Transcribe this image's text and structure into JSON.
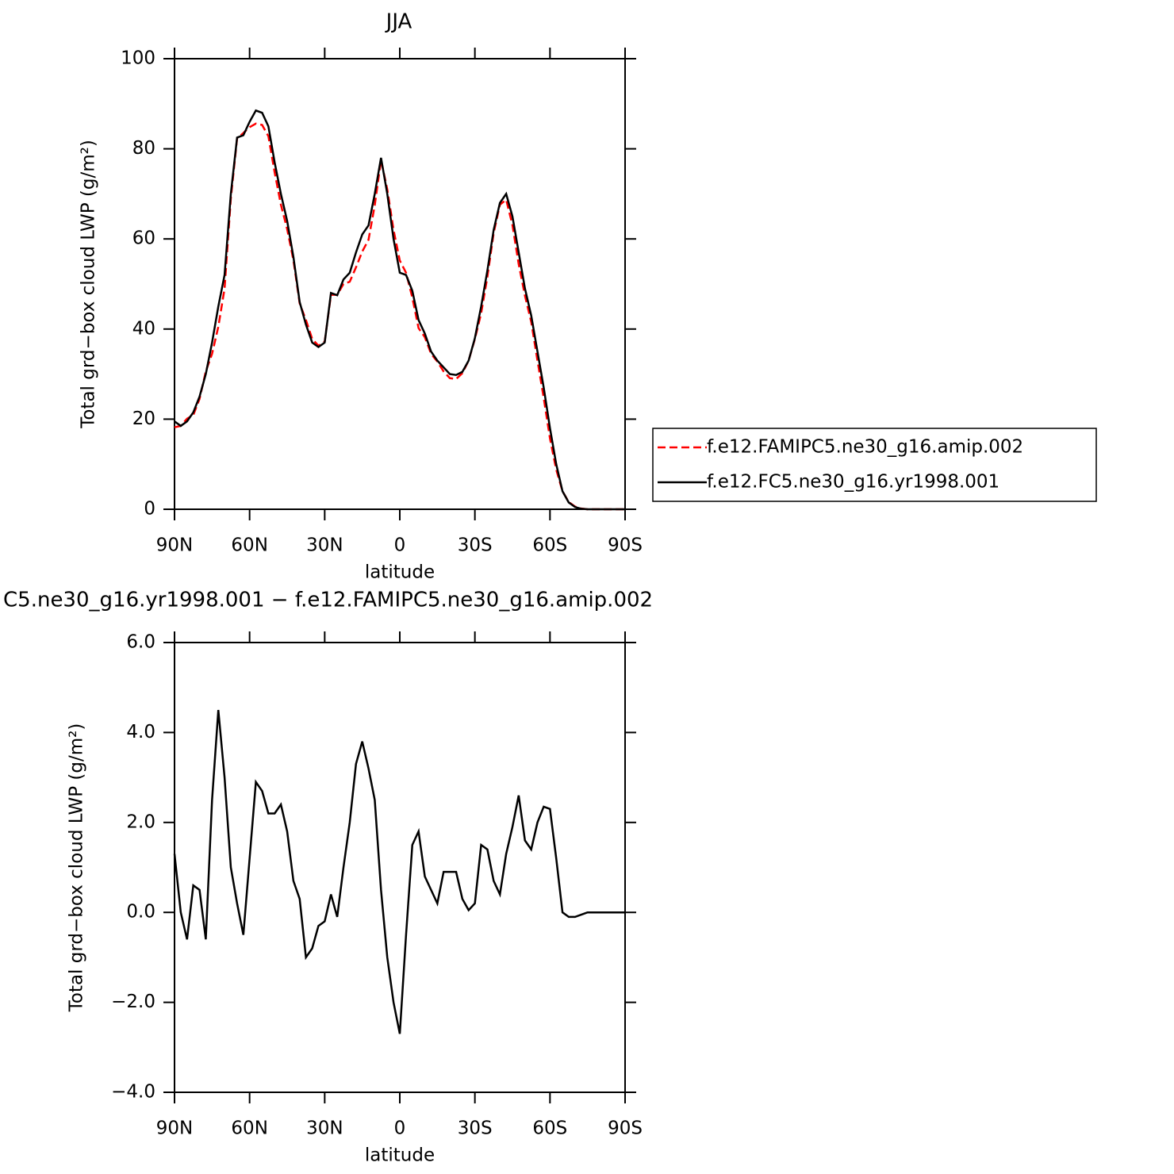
{
  "chart_data": [
    {
      "type": "line",
      "title": "JJA",
      "x_label": "latitude",
      "y_label": "Total grd−box cloud LWP (g/m²)",
      "legend": "right",
      "x": [
        90,
        87.5,
        85,
        82.5,
        80,
        77.5,
        75,
        72.5,
        70,
        67.5,
        65,
        62.5,
        60,
        57.5,
        55,
        52.5,
        50,
        47.5,
        45,
        42.5,
        40,
        37.5,
        35,
        32.5,
        30,
        27.5,
        25,
        22.5,
        20,
        17.5,
        15,
        12.5,
        10,
        7.5,
        5,
        2.5,
        0,
        -2.5,
        -5,
        -7.5,
        -10,
        -12.5,
        -15,
        -17.5,
        -20,
        -22.5,
        -25,
        -27.5,
        -30,
        -32.5,
        -35,
        -37.5,
        -40,
        -42.5,
        -45,
        -47.5,
        -50,
        -52.5,
        -55,
        -57.5,
        -60,
        -62.5,
        -65,
        -67.5,
        -70,
        -72.5,
        -75,
        -77.5,
        -80,
        -82.5,
        -85,
        -87.5,
        -90
      ],
      "series": [
        {
          "name": "f.e12.FAMIPC5.ne30_g16.amip.002",
          "color": "#ff0000",
          "dash": true,
          "values": [
            18.2,
            18.5,
            20.1,
            20.9,
            24.5,
            30.6,
            34.5,
            40.5,
            49,
            69,
            82.3,
            83.5,
            84.8,
            85.6,
            85.3,
            82.8,
            74.8,
            67.6,
            62.2,
            55.3,
            45.7,
            42,
            37.8,
            36.3,
            37.2,
            47.6,
            47.6,
            50,
            50.5,
            53.7,
            57.2,
            59.8,
            67.5,
            77.5,
            71,
            62,
            55.2,
            52.5,
            47,
            40.2,
            38.2,
            34.5,
            32.8,
            30.6,
            29.1,
            28.9,
            30.2,
            33,
            37.8,
            43.5,
            51.6,
            61.3,
            67.6,
            68.7,
            63.1,
            54.4,
            47.4,
            41.6,
            33,
            24.7,
            15.7,
            8.8,
            4,
            1.6,
            0.6,
            0.15,
            0,
            0,
            0,
            0,
            0,
            0,
            0
          ]
        },
        {
          "name": "f.e12.FC5.ne30_g16.yr1998.001",
          "color": "#000000",
          "dash": false,
          "values": [
            19.5,
            18.5,
            19.5,
            21.5,
            25,
            30,
            37,
            45,
            52,
            70,
            82.5,
            83,
            86,
            88.5,
            88,
            85,
            77,
            70,
            64,
            56,
            46,
            41,
            37,
            36,
            37,
            48,
            47.5,
            51,
            52.5,
            57,
            61,
            63,
            70,
            78,
            70,
            60,
            52.5,
            52,
            48.5,
            42,
            39,
            35,
            33,
            31.5,
            30,
            29.8,
            30.5,
            33,
            38,
            45,
            53,
            62,
            68,
            70,
            65,
            57,
            49,
            43,
            35,
            27,
            18,
            10,
            4,
            1.5,
            0.5,
            0.1,
            0,
            0,
            0,
            0,
            0,
            0,
            0
          ]
        }
      ],
      "xlim": [
        90,
        -90
      ],
      "ylim": [
        0,
        100
      ],
      "xticks": [
        {
          "value": 90,
          "label": "90N"
        },
        {
          "value": 60,
          "label": "60N"
        },
        {
          "value": 30,
          "label": "30N"
        },
        0,
        {
          "value": -30,
          "label": "30S"
        },
        {
          "value": -60,
          "label": "60S"
        },
        {
          "value": -90,
          "label": "90S"
        }
      ],
      "yticks": [
        0,
        20,
        40,
        60,
        80,
        100
      ]
    },
    {
      "type": "line",
      "title": "C5.ne30_g16.yr1998.001 − f.e12.FAMIPC5.ne30_g16.amip.002",
      "x_label": "latitude",
      "y_label": "Total grd−box cloud LWP (g/m²)",
      "x": [
        90,
        87.5,
        85,
        82.5,
        80,
        77.5,
        75,
        72.5,
        70,
        67.5,
        65,
        62.5,
        60,
        57.5,
        55,
        52.5,
        50,
        47.5,
        45,
        42.5,
        40,
        37.5,
        35,
        32.5,
        30,
        27.5,
        25,
        22.5,
        20,
        17.5,
        15,
        12.5,
        10,
        7.5,
        5,
        2.5,
        0,
        -2.5,
        -5,
        -7.5,
        -10,
        -12.5,
        -15,
        -17.5,
        -20,
        -22.5,
        -25,
        -27.5,
        -30,
        -32.5,
        -35,
        -37.5,
        -40,
        -42.5,
        -45,
        -47.5,
        -50,
        -52.5,
        -55,
        -57.5,
        -60,
        -62.5,
        -65,
        -67.5,
        -70,
        -72.5,
        -75,
        -77.5,
        -80,
        -82.5,
        -85,
        -87.5,
        -90
      ],
      "series": [
        {
          "color": "#000000",
          "dash": false,
          "values": [
            1.3,
            0,
            -0.6,
            0.6,
            0.5,
            -0.6,
            2.5,
            4.5,
            3,
            1,
            0.2,
            -0.5,
            1.2,
            2.9,
            2.7,
            2.2,
            2.2,
            2.4,
            1.8,
            0.7,
            0.3,
            -1,
            -0.8,
            -0.3,
            -0.2,
            0.4,
            -0.1,
            1,
            2,
            3.3,
            3.8,
            3.2,
            2.5,
            0.5,
            -1,
            -2,
            -2.7,
            -0.5,
            1.5,
            1.8,
            0.8,
            0.5,
            0.2,
            0.9,
            0.9,
            0.9,
            0.3,
            0.05,
            0.2,
            1.5,
            1.4,
            0.7,
            0.4,
            1.3,
            1.9,
            2.6,
            1.6,
            1.4,
            2,
            2.35,
            2.3,
            1.2,
            0,
            -0.1,
            -0.1,
            -0.05,
            0,
            0,
            0,
            0,
            0,
            0,
            0
          ]
        }
      ],
      "xlim": [
        90,
        -90
      ],
      "ylim": [
        -4,
        6
      ],
      "xticks": [
        {
          "value": 90,
          "label": "90N"
        },
        {
          "value": 60,
          "label": "60N"
        },
        {
          "value": 30,
          "label": "30N"
        },
        0,
        {
          "value": -30,
          "label": "30S"
        },
        {
          "value": -60,
          "label": "60S"
        },
        {
          "value": -90,
          "label": "90S"
        }
      ],
      "yticks": [
        {
          "value": -4,
          "label": "−4.0"
        },
        {
          "value": -2,
          "label": "−2.0"
        },
        {
          "value": 0,
          "label": "0.0"
        },
        {
          "value": 2,
          "label": "2.0"
        },
        {
          "value": 4,
          "label": "4.0"
        },
        {
          "value": 6,
          "label": "6.0"
        }
      ]
    }
  ]
}
